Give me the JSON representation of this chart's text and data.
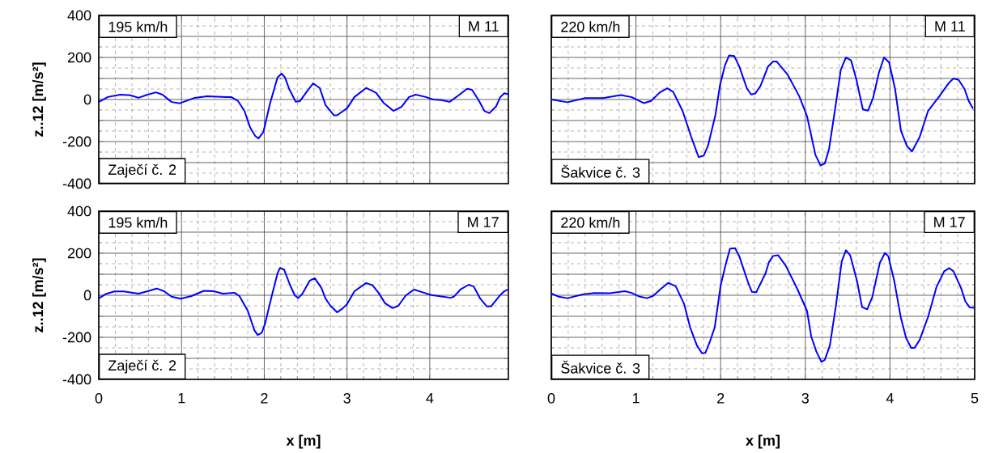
{
  "chart_data": [
    {
      "type": "line",
      "xlabel": null,
      "ylabel": "z..12 [m/s²]",
      "annotations": [
        "195 km/h",
        "M 11",
        "Zaječí č. 2"
      ],
      "xlim": [
        0,
        4.95
      ],
      "xticks": [
        0,
        1,
        2,
        3,
        4
      ],
      "ylim": [
        -400,
        400
      ],
      "yticks": [
        -400,
        {
          "value": -300,
          "label": null
        },
        -200,
        {
          "value": -100,
          "label": null
        },
        0,
        {
          "value": 100,
          "label": null
        },
        200,
        {
          "value": 300,
          "label": null
        },
        400
      ],
      "grid": true,
      "tick_labels": "y",
      "series": [
        {
          "color": "#0000ff",
          "x": [
            0,
            0.11,
            0.26,
            0.38,
            0.48,
            0.59,
            0.69,
            0.77,
            0.88,
            0.98,
            1.16,
            1.31,
            1.54,
            1.6,
            1.68,
            1.76,
            1.83,
            1.89,
            1.93,
            1.99,
            2.07,
            2.16,
            2.21,
            2.25,
            2.3,
            2.38,
            2.43,
            2.51,
            2.59,
            2.67,
            2.74,
            2.84,
            2.88,
            3.0,
            3.09,
            3.23,
            3.35,
            3.44,
            3.56,
            3.66,
            3.75,
            3.83,
            3.95,
            4.04,
            4.14,
            4.24,
            4.35,
            4.45,
            4.51,
            4.59,
            4.66,
            4.72,
            4.8,
            4.85,
            4.9,
            4.95
          ],
          "values": [
            -12,
            12,
            23,
            20,
            8,
            23,
            34,
            23,
            -12,
            -18,
            8,
            15,
            12,
            12,
            -6,
            -54,
            -134,
            -173,
            -185,
            -154,
            -18,
            105,
            123,
            105,
            51,
            -11,
            -8,
            35,
            77,
            55,
            -26,
            -75,
            -75,
            -42,
            12,
            55,
            32,
            -15,
            -54,
            -34,
            12,
            23,
            12,
            0,
            -3,
            -11,
            20,
            51,
            46,
            -3,
            -54,
            -65,
            -34,
            10,
            30,
            25
          ]
        }
      ]
    },
    {
      "type": "line",
      "annotations": [
        "220 km/h",
        "M 11",
        "Šakvice č. 3"
      ],
      "xlim": [
        0,
        5
      ],
      "xticks": [
        0,
        1,
        2,
        3,
        4,
        5
      ],
      "ylim": [
        -400,
        400
      ],
      "yticks": [
        -400,
        {
          "value": -300,
          "label": null
        },
        -200,
        {
          "value": -100,
          "label": null
        },
        0,
        {
          "value": 100,
          "label": null
        },
        200,
        {
          "value": 300,
          "label": null
        },
        400
      ],
      "grid": true,
      "tick_labels": false,
      "series": [
        {
          "color": "#0000ff",
          "x": [
            0,
            0.19,
            0.4,
            0.61,
            0.82,
            0.95,
            1.09,
            1.18,
            1.28,
            1.37,
            1.44,
            1.55,
            1.66,
            1.74,
            1.8,
            1.85,
            1.94,
            1.99,
            2.05,
            2.1,
            2.16,
            2.22,
            2.31,
            2.36,
            2.41,
            2.47,
            2.56,
            2.62,
            2.66,
            2.79,
            2.93,
            3.02,
            3.12,
            3.18,
            3.23,
            3.28,
            3.35,
            3.42,
            3.48,
            3.54,
            3.6,
            3.68,
            3.74,
            3.8,
            3.87,
            3.93,
            3.99,
            4.06,
            4.13,
            4.2,
            4.26,
            4.35,
            4.45,
            4.58,
            4.7,
            4.75,
            4.81,
            4.88,
            4.93,
            4.98
          ],
          "values": [
            0,
            -13,
            7,
            7,
            21,
            11,
            -17,
            -7,
            33,
            53,
            36,
            -54,
            -186,
            -274,
            -267,
            -221,
            -71,
            64,
            161,
            210,
            207,
            157,
            53,
            24,
            29,
            64,
            157,
            181,
            181,
            119,
            14,
            -79,
            -264,
            -314,
            -304,
            -236,
            -50,
            143,
            200,
            186,
            100,
            -47,
            -53,
            7,
            129,
            200,
            176,
            50,
            -150,
            -221,
            -247,
            -179,
            -54,
            14,
            81,
            100,
            93,
            50,
            -7,
            -43
          ]
        }
      ]
    },
    {
      "type": "line",
      "xlabel": "x [m]",
      "ylabel": "z..12 [m/s²]",
      "annotations": [
        "195 km/h",
        "M 17",
        "Zaječí č. 2"
      ],
      "xlim": [
        0,
        4.95
      ],
      "xticks": [
        0,
        1,
        2,
        3,
        4
      ],
      "ylim": [
        -400,
        400
      ],
      "yticks": [
        -400,
        {
          "value": -300,
          "label": null
        },
        -200,
        {
          "value": -100,
          "label": null
        },
        0,
        {
          "value": 100,
          "label": null
        },
        200,
        {
          "value": 300,
          "label": null
        },
        400
      ],
      "grid": true,
      "series": [
        {
          "color": "#0000ff",
          "x": [
            0,
            0.09,
            0.19,
            0.3,
            0.48,
            0.59,
            0.7,
            0.79,
            0.88,
            0.99,
            1.12,
            1.27,
            1.39,
            1.5,
            1.64,
            1.7,
            1.8,
            1.88,
            1.92,
            1.97,
            2.01,
            2.09,
            2.16,
            2.19,
            2.24,
            2.31,
            2.37,
            2.41,
            2.46,
            2.55,
            2.61,
            2.69,
            2.74,
            2.8,
            2.88,
            2.94,
            3.0,
            3.09,
            3.23,
            3.31,
            3.38,
            3.46,
            3.55,
            3.62,
            3.71,
            3.81,
            3.93,
            4.02,
            4.16,
            4.25,
            4.29,
            4.37,
            4.47,
            4.53,
            4.61,
            4.69,
            4.74,
            4.84,
            4.9,
            4.95
          ],
          "values": [
            -15,
            7,
            18,
            18,
            8,
            19,
            32,
            19,
            -7,
            -16,
            -4,
            21,
            19,
            8,
            12,
            -4,
            -73,
            -166,
            -189,
            -178,
            -135,
            -4,
            104,
            130,
            122,
            50,
            -1,
            -13,
            7,
            70,
            81,
            35,
            -16,
            -50,
            -81,
            -65,
            -42,
            19,
            58,
            47,
            12,
            -38,
            -61,
            -50,
            -1,
            27,
            12,
            1,
            -7,
            -12,
            -7,
            27,
            50,
            42,
            -16,
            -53,
            -53,
            -4,
            19,
            28
          ]
        }
      ]
    },
    {
      "type": "line",
      "xlabel": "x [m]",
      "annotations": [
        "220 km/h",
        "M 17",
        "Šakvice č. 3"
      ],
      "xlim": [
        0,
        5
      ],
      "xticks": [
        0,
        1,
        2,
        3,
        4,
        5
      ],
      "ylim": [
        -400,
        400
      ],
      "yticks": [
        -400,
        {
          "value": -300,
          "label": null
        },
        -200,
        {
          "value": -100,
          "label": null
        },
        0,
        {
          "value": 100,
          "label": null
        },
        200,
        {
          "value": 300,
          "label": null
        },
        400
      ],
      "grid": true,
      "tick_labels": "x",
      "series": [
        {
          "color": "#0000ff",
          "x": [
            0,
            0.09,
            0.19,
            0.37,
            0.51,
            0.69,
            0.87,
            0.95,
            1.04,
            1.13,
            1.2,
            1.29,
            1.38,
            1.47,
            1.57,
            1.64,
            1.72,
            1.78,
            1.82,
            1.87,
            1.93,
            2.0,
            2.06,
            2.11,
            2.17,
            2.22,
            2.33,
            2.37,
            2.42,
            2.53,
            2.57,
            2.62,
            2.68,
            2.77,
            2.91,
            3.02,
            3.07,
            3.13,
            3.19,
            3.23,
            3.29,
            3.36,
            3.43,
            3.48,
            3.53,
            3.61,
            3.67,
            3.73,
            3.79,
            3.88,
            3.94,
            3.98,
            4.05,
            4.13,
            4.19,
            4.25,
            4.29,
            4.35,
            4.45,
            4.55,
            4.64,
            4.7,
            4.75,
            4.84,
            4.89,
            4.94,
            5.0
          ],
          "values": [
            9,
            -7,
            -14,
            4,
            11,
            10,
            19,
            11,
            -6,
            -14,
            -4,
            29,
            59,
            43,
            -43,
            -153,
            -239,
            -276,
            -274,
            -224,
            -153,
            47,
            147,
            221,
            224,
            186,
            54,
            16,
            14,
            104,
            157,
            187,
            190,
            140,
            26,
            -74,
            -196,
            -267,
            -317,
            -307,
            -239,
            -53,
            161,
            214,
            190,
            69,
            -56,
            -67,
            -10,
            154,
            201,
            186,
            69,
            -110,
            -203,
            -250,
            -250,
            -213,
            -103,
            40,
            114,
            129,
            114,
            33,
            -29,
            -57,
            -61
          ]
        }
      ]
    }
  ]
}
